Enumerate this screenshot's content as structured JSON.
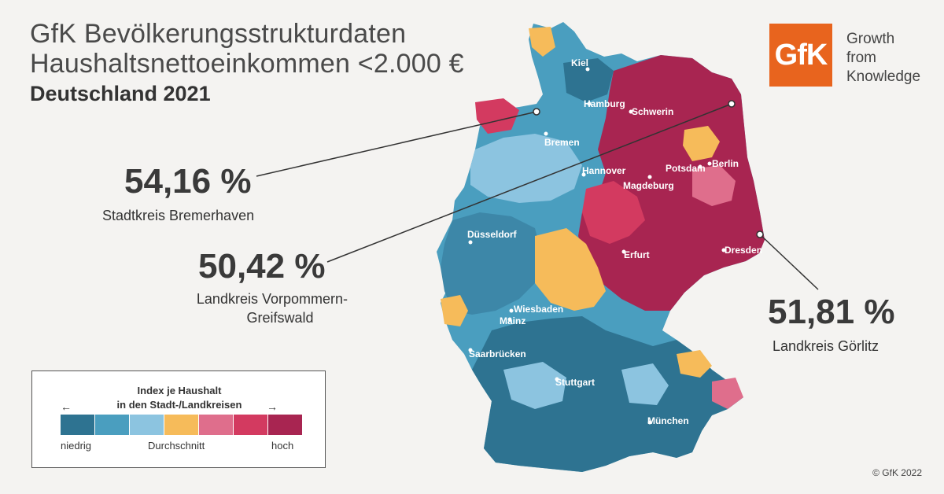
{
  "header": {
    "title_line1": "GfK Bevölkerungsstrukturdaten",
    "title_line2": "Haushaltsnettoeinkommen <2.000 €",
    "title_line3": "Deutschland 2021"
  },
  "logo": {
    "mark": "GfK",
    "line1": "Growth",
    "line2": "from",
    "line3": "Knowledge",
    "color": "#e8641e"
  },
  "callouts": [
    {
      "value": "54,16 %",
      "label_line1": "Stadtkreis Bremerhaven",
      "label_line2": ""
    },
    {
      "value": "50,42 %",
      "label_line1": "Landkreis Vorpommern-",
      "label_line2": "Greifswald"
    },
    {
      "value": "51,81 %",
      "label_line1": "Landkreis Görlitz",
      "label_line2": ""
    }
  ],
  "cities": [
    "Kiel",
    "Hamburg",
    "Schwerin",
    "Bremen",
    "Hannover",
    "Potsdam",
    "Berlin",
    "Magdeburg",
    "Düsseldorf",
    "Erfurt",
    "Dresden",
    "Wiesbaden",
    "Mainz",
    "Saarbrücken",
    "Stuttgart",
    "München"
  ],
  "legend": {
    "title_line1": "Index je Haushalt",
    "title_line2": "in den Stadt-/Landkreisen",
    "low": "niedrig",
    "mid": "Durchschnitt",
    "high": "hoch",
    "arrow_left": "←",
    "arrow_right": "→",
    "colors": [
      "#2e7391",
      "#4a9ebf",
      "#8cc4e0",
      "#f6bb5a",
      "#df6e8c",
      "#d33a60",
      "#a82551"
    ]
  },
  "footer": {
    "copyright": "© GfK 2022"
  }
}
